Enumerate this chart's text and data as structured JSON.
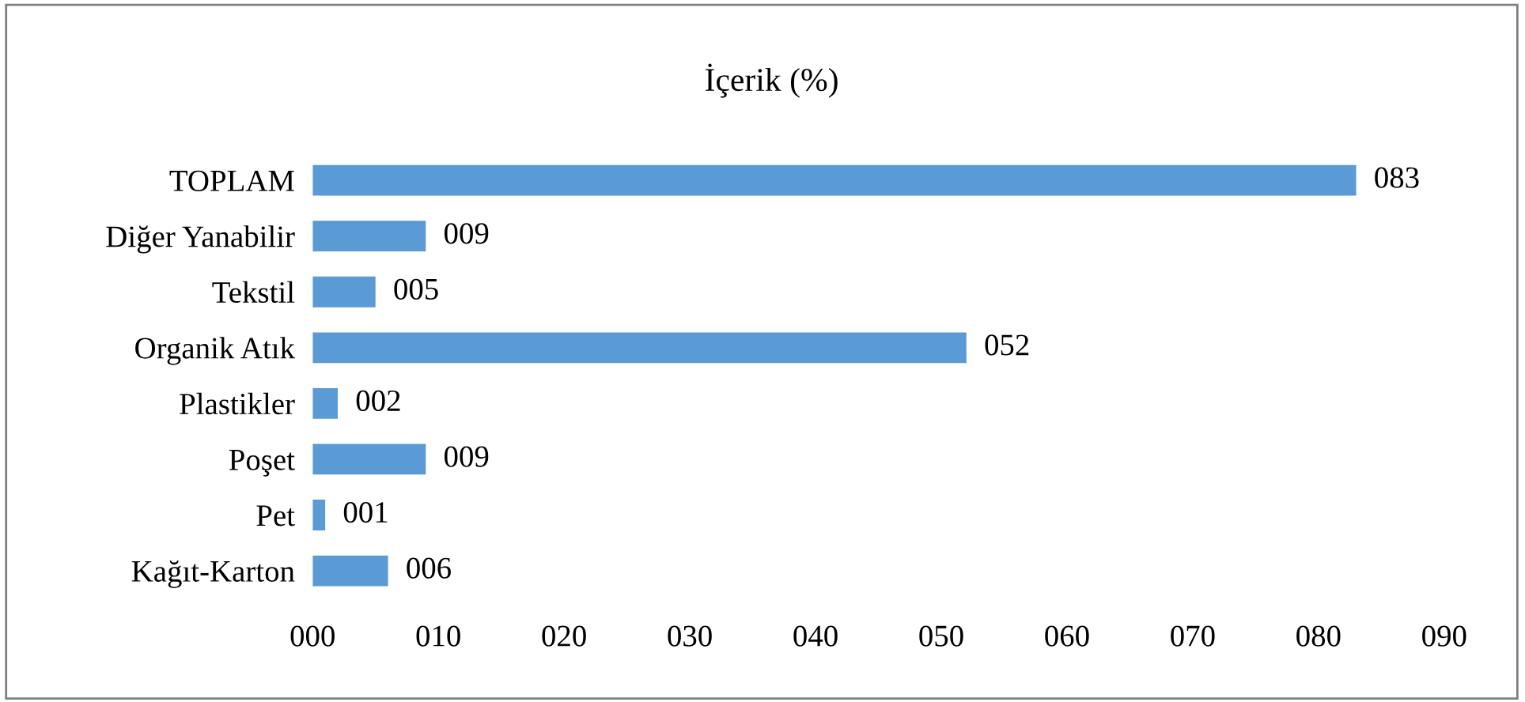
{
  "chart_data": {
    "type": "bar",
    "orientation": "horizontal",
    "title": "İçerik (%)",
    "categories": [
      "TOPLAM",
      "Diğer Yanabilir",
      "Tekstil",
      "Organik Atık",
      "Plastikler",
      "Poşet",
      "Pet",
      "Kağıt-Karton"
    ],
    "values": [
      83,
      9,
      5,
      52,
      2,
      9,
      1,
      6
    ],
    "value_labels": [
      "083",
      "009",
      "005",
      "052",
      "002",
      "009",
      "001",
      "006"
    ],
    "color": "#5b9bd5",
    "xlim": [
      0,
      90
    ],
    "xticks": [
      {
        "value": 0,
        "label": "000"
      },
      {
        "value": 10,
        "label": "010"
      },
      {
        "value": 20,
        "label": "020"
      },
      {
        "value": 30,
        "label": "030"
      },
      {
        "value": 40,
        "label": "040"
      },
      {
        "value": 50,
        "label": "050"
      },
      {
        "value": 60,
        "label": "060"
      },
      {
        "value": 70,
        "label": "070"
      },
      {
        "value": 80,
        "label": "080"
      },
      {
        "value": 90,
        "label": "090"
      }
    ],
    "grid": false,
    "legend": false
  }
}
